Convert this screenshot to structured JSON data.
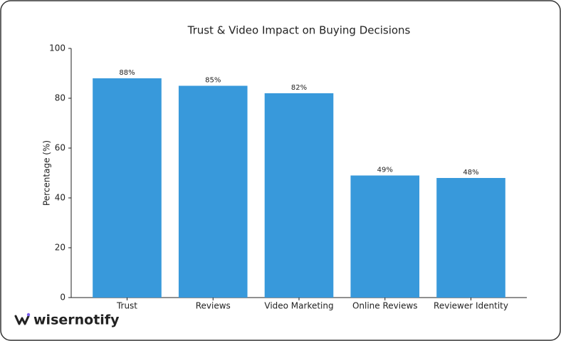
{
  "chart_data": {
    "type": "bar",
    "title": "Trust & Video Impact on Buying Decisions",
    "ylabel": "Percentage (%)",
    "categories": [
      "Trust",
      "Reviews",
      "Video Marketing",
      "Online Reviews",
      "Reviewer Identity"
    ],
    "values": [
      88,
      85,
      82,
      49,
      48
    ],
    "value_labels": [
      "88%",
      "85%",
      "82%",
      "49%",
      "48%"
    ],
    "color": "#3899db",
    "ylim": [
      0,
      100
    ],
    "yticks": [
      0,
      20,
      40,
      60,
      80,
      100
    ],
    "grid": false
  },
  "logo": "wisernotify"
}
